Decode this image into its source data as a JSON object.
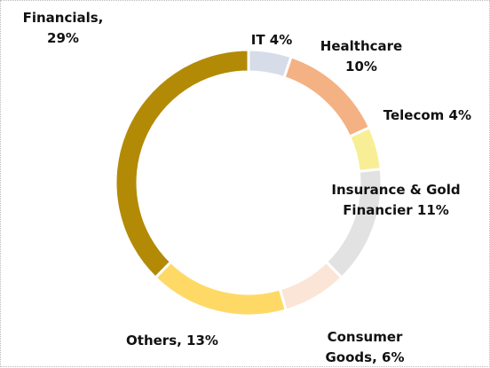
{
  "chart_data": {
    "type": "donut",
    "value_labels": [
      "IT 4%",
      "Healthcare 10%",
      "Telecom 4%",
      "Insurance & Gold Financier 11%",
      "Consumer Goods, 6%",
      "Others, 13%",
      "Financials, 29%"
    ],
    "values": [
      4,
      10,
      4,
      11,
      6,
      13,
      29
    ],
    "colors": [
      "#d6dce8",
      "#f4b183",
      "#f8ee95",
      "#e2e2e2",
      "#fbe5d6",
      "#ffd966",
      "#b38a06"
    ]
  }
}
